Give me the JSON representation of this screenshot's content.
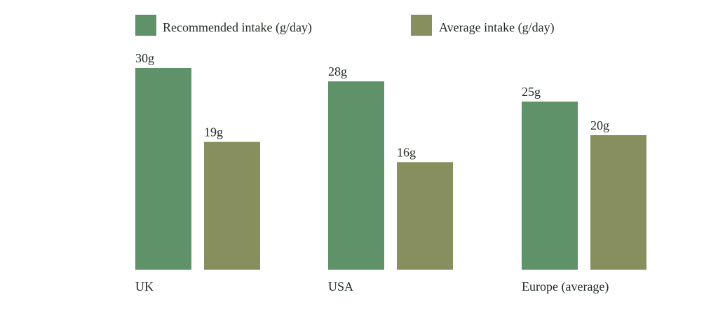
{
  "chart_data": {
    "type": "bar",
    "categories": [
      "UK",
      "USA",
      "Europe (average)"
    ],
    "series": [
      {
        "name": "Recommended intake (g/day)",
        "values": [
          30,
          28,
          25
        ],
        "labels": [
          "30g",
          "28g",
          "25g"
        ],
        "color": "#5f9268"
      },
      {
        "name": "Average intake (g/day)",
        "values": [
          19,
          16,
          20
        ],
        "labels": [
          "19g",
          "16g",
          "20g"
        ],
        "color": "#878f5f"
      }
    ],
    "title": "",
    "xlabel": "",
    "ylabel": "",
    "ylim": [
      0,
      30
    ],
    "grid": false,
    "legend_position": "top"
  }
}
